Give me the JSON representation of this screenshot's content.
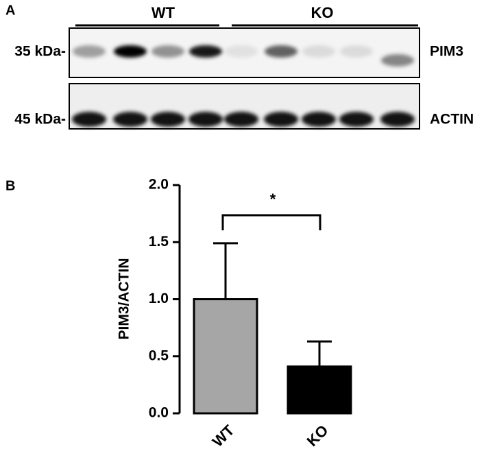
{
  "panel_a": {
    "label": "A",
    "groups": [
      "WT",
      "KO"
    ],
    "markers": [
      "35 kDa-",
      "45 kDa-"
    ],
    "proteins": [
      "PIM3",
      "ACTIN"
    ]
  },
  "chart_data": {
    "type": "bar",
    "panel_label": "B",
    "ylabel": "PIM3/ACTIN",
    "categories": [
      "WT",
      "KO"
    ],
    "values": [
      1.0,
      0.41
    ],
    "errors": [
      0.49,
      0.22
    ],
    "colors": [
      "#a6a6a6",
      "#000000"
    ],
    "ylim": [
      0,
      2
    ],
    "yticks": [
      {
        "value": 0,
        "label": "0.0"
      },
      {
        "value": 0.5,
        "label": "0.5"
      },
      {
        "value": 1,
        "label": "1.0"
      },
      {
        "value": 1.5,
        "label": "1.5"
      },
      {
        "value": 2,
        "label": "2.0"
      }
    ],
    "annotation": "*"
  }
}
